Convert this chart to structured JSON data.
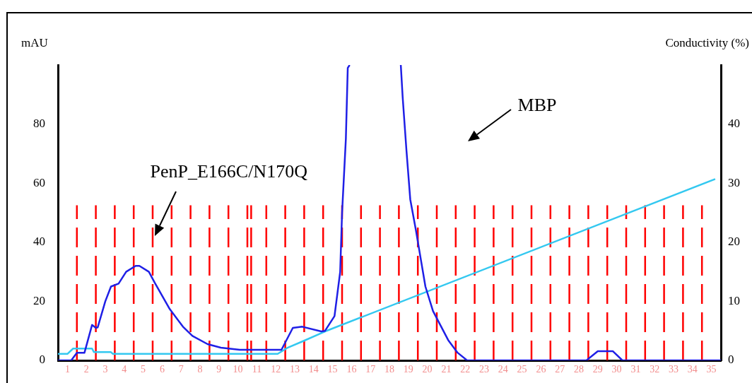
{
  "chart_data": {
    "type": "line",
    "ylabel": "mAU",
    "y2label": "Conductivity (%)",
    "xlim": [
      0.5,
      35.5
    ],
    "xticks": [
      1,
      2,
      3,
      4,
      5,
      6,
      7,
      8,
      9,
      10,
      11,
      12,
      13,
      14,
      15,
      16,
      17,
      18,
      19,
      20,
      21,
      22,
      23,
      24,
      25,
      26,
      27,
      28,
      29,
      30,
      31,
      32,
      33,
      34,
      35
    ],
    "ylim": [
      0,
      100
    ],
    "yticks": [
      0,
      20,
      40,
      60,
      80
    ],
    "y2lim": [
      0,
      50
    ],
    "y2ticks": [
      0,
      10,
      20,
      30,
      40
    ],
    "grid": false,
    "legend": false,
    "marker": "none",
    "line_style": "solid",
    "series": [
      {
        "color": "#1f1fe6",
        "x": [
          0.5,
          1.2,
          1.5,
          1.9,
          2.3,
          2.5,
          2.6,
          3.0,
          3.3,
          3.7,
          4.1,
          4.6,
          4.8,
          5.3,
          5.6,
          6.4,
          7.1,
          7.6,
          8.4,
          9.1,
          10.1,
          12.3,
          12.9,
          13.4,
          14.4,
          14.6,
          15.1,
          15.4,
          15.5,
          15.7,
          15.8,
          15.9,
          17.2,
          18.6,
          18.7,
          18.9,
          19.1,
          19.4,
          19.6,
          19.9,
          20.3,
          21.1,
          21.6,
          22.1,
          28.4,
          29.0,
          29.8,
          30.3,
          35.5
        ],
        "values": [
          0,
          0,
          2.6,
          2.6,
          12,
          11,
          11.2,
          20,
          25,
          26,
          30,
          32,
          32,
          30,
          26.4,
          17.4,
          11.4,
          8.3,
          5.5,
          4.3,
          3.6,
          3.6,
          11,
          11.4,
          9.8,
          10,
          15,
          30,
          50,
          75,
          99,
          100,
          null,
          100,
          89,
          71,
          54.5,
          44,
          36.4,
          25,
          16.7,
          6.9,
          2.6,
          0,
          0,
          3.1,
          3.1,
          0,
          0
        ]
      },
      {
        "color": "#33c8f0",
        "axis": "y2",
        "x": [
          0.5,
          1.0,
          1.3,
          2.3,
          2.4,
          3.3,
          3.4,
          12.1,
          12.6,
          13.4,
          14.6,
          35.2
        ],
        "values": [
          1.1,
          1.1,
          2,
          2,
          1.4,
          1.4,
          1.1,
          1.1,
          2.1,
          3.2,
          4.9,
          30.7
        ]
      }
    ],
    "ref_lines": [
      {
        "axis": "x",
        "value": 1.5,
        "color": "#ff0000",
        "line_style": "dashed"
      },
      {
        "axis": "x",
        "value": 2.5,
        "color": "#ff0000",
        "line_style": "dashed"
      },
      {
        "axis": "x",
        "value": 3.5,
        "color": "#ff0000",
        "line_style": "dashed"
      },
      {
        "axis": "x",
        "value": 4.5,
        "color": "#ff0000",
        "line_style": "dashed"
      },
      {
        "axis": "x",
        "value": 5.5,
        "color": "#ff0000",
        "line_style": "dashed"
      },
      {
        "axis": "x",
        "value": 6.5,
        "color": "#ff0000",
        "line_style": "dashed"
      },
      {
        "axis": "x",
        "value": 7.5,
        "color": "#ff0000",
        "line_style": "dashed"
      },
      {
        "axis": "x",
        "value": 8.5,
        "color": "#ff0000",
        "line_style": "dashed"
      },
      {
        "axis": "x",
        "value": 9.5,
        "color": "#ff0000",
        "line_style": "dashed"
      },
      {
        "axis": "x",
        "value": 10.5,
        "color": "#ff0000",
        "line_style": "dashed"
      },
      {
        "axis": "x",
        "value": 10.7,
        "color": "#ff0000",
        "line_style": "dashed"
      },
      {
        "axis": "x",
        "value": 11.5,
        "color": "#ff0000",
        "line_style": "dashed"
      },
      {
        "axis": "x",
        "value": 12.5,
        "color": "#ff0000",
        "line_style": "dashed"
      },
      {
        "axis": "x",
        "value": 13.5,
        "color": "#ff0000",
        "line_style": "dashed"
      },
      {
        "axis": "x",
        "value": 14.5,
        "color": "#ff0000",
        "line_style": "dashed"
      },
      {
        "axis": "x",
        "value": 15.5,
        "color": "#ff0000",
        "line_style": "dashed"
      },
      {
        "axis": "x",
        "value": 16.5,
        "color": "#ff0000",
        "line_style": "dashed"
      },
      {
        "axis": "x",
        "value": 17.5,
        "color": "#ff0000",
        "line_style": "dashed"
      },
      {
        "axis": "x",
        "value": 18.5,
        "color": "#ff0000",
        "line_style": "dashed"
      },
      {
        "axis": "x",
        "value": 19.5,
        "color": "#ff0000",
        "line_style": "dashed"
      },
      {
        "axis": "x",
        "value": 20.5,
        "color": "#ff0000",
        "line_style": "dashed"
      },
      {
        "axis": "x",
        "value": 21.5,
        "color": "#ff0000",
        "line_style": "dashed"
      },
      {
        "axis": "x",
        "value": 22.5,
        "color": "#ff0000",
        "line_style": "dashed"
      },
      {
        "axis": "x",
        "value": 23.5,
        "color": "#ff0000",
        "line_style": "dashed"
      },
      {
        "axis": "x",
        "value": 24.5,
        "color": "#ff0000",
        "line_style": "dashed"
      },
      {
        "axis": "x",
        "value": 25.5,
        "color": "#ff0000",
        "line_style": "dashed"
      },
      {
        "axis": "x",
        "value": 26.5,
        "color": "#ff0000",
        "line_style": "dashed"
      },
      {
        "axis": "x",
        "value": 27.5,
        "color": "#ff0000",
        "line_style": "dashed"
      },
      {
        "axis": "x",
        "value": 28.5,
        "color": "#ff0000",
        "line_style": "dashed"
      },
      {
        "axis": "x",
        "value": 29.5,
        "color": "#ff0000",
        "line_style": "dashed"
      },
      {
        "axis": "x",
        "value": 30.5,
        "color": "#ff0000",
        "line_style": "dashed"
      },
      {
        "axis": "x",
        "value": 31.5,
        "color": "#ff0000",
        "line_style": "dashed"
      },
      {
        "axis": "x",
        "value": 32.5,
        "color": "#ff0000",
        "line_style": "dashed"
      },
      {
        "axis": "x",
        "value": 33.5,
        "color": "#ff0000",
        "line_style": "dashed"
      },
      {
        "axis": "x",
        "value": 34.5,
        "color": "#ff0000",
        "line_style": "dashed"
      }
    ],
    "annotations": [
      {
        "text": "PenP_E166C/N170Q",
        "x": 5.6,
        "y": 42
      },
      "MBP"
    ]
  }
}
